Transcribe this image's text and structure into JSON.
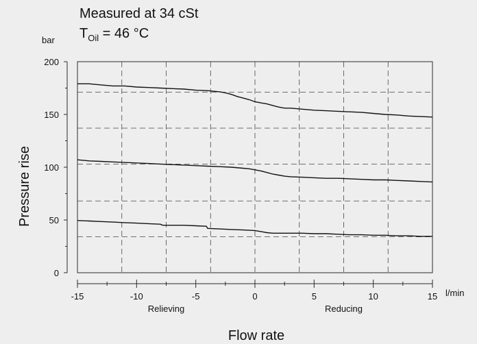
{
  "chart_data": {
    "type": "line",
    "title": "Measured at 34 cSt",
    "subtitle": {
      "base": "T",
      "sub": "Oil",
      "rest": " = 46 °C"
    },
    "xlabel": "Flow rate",
    "ylabel": "Pressure rise",
    "y_unit": "bar",
    "x_unit": "l/min",
    "xlim": [
      -15,
      15
    ],
    "ylim": [
      0,
      200
    ],
    "x_ticks": [
      -15,
      -10,
      -5,
      0,
      5,
      10,
      15
    ],
    "y_ticks": [
      0,
      50,
      100,
      150,
      200
    ],
    "x_region_labels": [
      {
        "text": "Relieving",
        "at": -7.5
      },
      {
        "text": "Reducing",
        "at": 7.5
      }
    ],
    "grid": {
      "x_dashed_at": [
        -11.25,
        -7.5,
        -3.75,
        0,
        3.75,
        7.5,
        11.25
      ],
      "y_dashed_at": [
        34,
        68,
        103,
        137,
        171
      ]
    },
    "series": [
      {
        "x": [
          -15,
          -14,
          -13,
          -12,
          -11,
          -10,
          -9,
          -8,
          -7,
          -6,
          -5,
          -4,
          -3,
          -2.5,
          -2,
          -1.5,
          -1,
          -0.5,
          0,
          0.5,
          1,
          1.5,
          2,
          2.5,
          3,
          4,
          5,
          6,
          7,
          8,
          9,
          10,
          11,
          12,
          13,
          14,
          15
        ],
        "y": [
          179,
          179,
          178,
          177,
          177,
          176,
          175.5,
          175,
          174.5,
          174,
          173,
          172.5,
          171.5,
          170.5,
          169,
          167,
          165.5,
          164,
          162,
          161,
          160,
          158.5,
          157,
          156,
          156,
          155,
          154,
          153.5,
          153,
          152.5,
          152,
          151,
          150,
          149.5,
          148.5,
          148,
          147.5
        ]
      },
      {
        "x": [
          -15,
          -14,
          -13,
          -12,
          -11,
          -10,
          -9,
          -8,
          -7,
          -6,
          -5,
          -4,
          -3,
          -2,
          -1,
          -0.5,
          0,
          0.5,
          1,
          1.5,
          2,
          2.5,
          3,
          4,
          5,
          6,
          7,
          8,
          9,
          10,
          11,
          12,
          13,
          14,
          15
        ],
        "y": [
          107,
          106,
          105.5,
          105,
          104.5,
          104,
          103.5,
          103,
          102.5,
          102,
          101.5,
          101,
          100.5,
          100,
          99,
          98.5,
          97.5,
          96.5,
          95,
          93.5,
          92.5,
          91.5,
          91,
          90.5,
          90,
          89.5,
          89.5,
          89,
          88.5,
          88,
          88,
          87.5,
          87,
          86.5,
          86
        ]
      },
      {
        "x": [
          -15,
          -14,
          -13,
          -12,
          -11,
          -10,
          -9,
          -8,
          -7.8,
          -7,
          -6,
          -5,
          -4.1,
          -4,
          -3,
          -2,
          -1,
          0,
          0.5,
          1,
          1.5,
          2,
          3,
          4,
          5,
          6,
          7,
          8,
          9,
          10,
          11,
          12,
          13,
          14,
          15
        ],
        "y": [
          49.5,
          49,
          48.5,
          48,
          47.5,
          47,
          46.5,
          46,
          45,
          45,
          45,
          44.5,
          44,
          42,
          41.5,
          41,
          40.5,
          40,
          39,
          38,
          37.5,
          37.5,
          37.5,
          37.5,
          37,
          37,
          36.5,
          36,
          36,
          35.5,
          35.5,
          35,
          35,
          34.5,
          34.5
        ]
      }
    ]
  }
}
